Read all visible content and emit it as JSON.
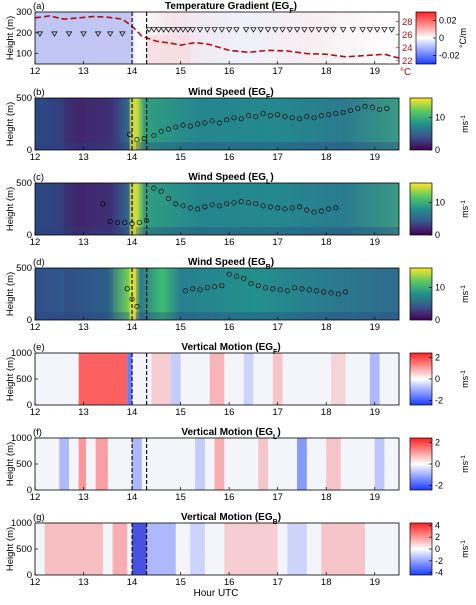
{
  "figure": {
    "xlabel": "Hour UTC",
    "x_ticks": [
      "12",
      "13",
      "14",
      "15",
      "16",
      "17",
      "18",
      "19"
    ]
  },
  "chart_data": [
    {
      "type": "heatmap",
      "panel": "(a)",
      "title": "Temperature Gradient (EG",
      "title_sub": "F",
      "ylabel": "Height (m)",
      "xlim": [
        12,
        19.5
      ],
      "ylim": [
        50,
        300
      ],
      "y_ticks": [
        "100",
        "200",
        "300"
      ],
      "colorbar": {
        "ticks": [
          "0.02",
          "0",
          "-0.02"
        ],
        "values": [
          0.02,
          0,
          -0.02
        ],
        "range": [
          -0.03,
          0.03
        ],
        "unit": "°C/m",
        "colors": [
          "#1a3cff",
          "#ffffff",
          "#ff2020"
        ]
      },
      "right_axis": {
        "ticks": [
          "28",
          "26",
          "24",
          "22"
        ],
        "values": [
          28,
          26,
          24,
          22
        ],
        "range": [
          21.5,
          29.5
        ],
        "unit": "°C",
        "color": "#b01010"
      },
      "temperature_series": {
        "x": [
          12,
          12.3,
          12.6,
          12.9,
          13.2,
          13.5,
          13.8,
          14.0,
          14.2,
          14.5,
          14.8,
          15.0,
          15.3,
          15.6,
          16.0,
          16.4,
          16.8,
          17.2,
          17.6,
          18.0,
          18.4,
          18.8,
          19.2,
          19.5
        ],
        "y": [
          28.6,
          28.9,
          28.4,
          28.6,
          28.8,
          28.7,
          28.4,
          27.3,
          25.8,
          25.0,
          24.7,
          24.4,
          24.8,
          24.5,
          23.6,
          23.3,
          23.6,
          23.5,
          23.1,
          23.0,
          22.6,
          22.8,
          23.0,
          22.4
        ]
      },
      "dashed_lines_x": [
        14.0,
        14.3
      ],
      "markers": {
        "x": [
          12.1,
          12.4,
          12.7,
          13.0,
          13.3,
          13.55,
          13.8,
          14.35,
          14.45,
          14.55,
          14.65,
          14.75,
          14.85,
          14.95,
          15.05,
          15.15,
          15.25,
          15.4,
          15.55,
          15.7,
          15.85,
          16.0,
          16.15,
          16.35,
          16.5,
          16.65,
          16.8,
          16.95,
          17.1,
          17.25,
          17.4,
          17.55,
          17.7,
          17.85,
          18.0,
          18.15,
          18.35,
          18.55,
          18.75,
          18.9,
          19.05,
          19.2,
          19.35
        ],
        "y": [
          195,
          195,
          195,
          195,
          195,
          195,
          195,
          215,
          215,
          215,
          215,
          215,
          215,
          215,
          215,
          215,
          215,
          215,
          215,
          215,
          215,
          215,
          215,
          215,
          215,
          215,
          215,
          215,
          215,
          215,
          215,
          215,
          215,
          215,
          215,
          215,
          215,
          215,
          215,
          215,
          215,
          215,
          215
        ]
      }
    },
    {
      "type": "heatmap",
      "panel": "(b)",
      "title": "Wind Speed (EG",
      "title_sub": "F",
      "ylabel": "Height (m)",
      "xlim": [
        12,
        19.5
      ],
      "ylim": [
        0,
        500
      ],
      "y_ticks": [
        "0",
        "500"
      ],
      "colorbar": {
        "ticks": [
          "10",
          "0"
        ],
        "values": [
          10,
          0
        ],
        "range": [
          0,
          16
        ],
        "unit": "ms-1",
        "unit_base": "ms",
        "unit_sup": "-1"
      },
      "dashed_lines_x": [
        14.0,
        14.3
      ],
      "markers": {
        "x": [
          13.95,
          14.1,
          14.25,
          14.45,
          14.6,
          14.75,
          14.9,
          15.05,
          15.2,
          15.35,
          15.5,
          15.65,
          15.8,
          15.95,
          16.1,
          16.25,
          16.4,
          16.55,
          16.7,
          16.85,
          17.0,
          17.15,
          17.3,
          17.45,
          17.6,
          17.75,
          17.9,
          18.05,
          18.2,
          18.35,
          18.5,
          18.65,
          18.8,
          18.95,
          19.1,
          19.25
        ],
        "y": [
          150,
          100,
          110,
          140,
          180,
          200,
          220,
          240,
          230,
          250,
          260,
          280,
          260,
          290,
          310,
          300,
          330,
          320,
          350,
          330,
          340,
          320,
          310,
          300,
          320,
          310,
          330,
          340,
          350,
          360,
          380,
          400,
          420,
          410,
          390,
          400
        ]
      }
    },
    {
      "type": "heatmap",
      "panel": "(c)",
      "title": "Wind Speed (EG",
      "title_sub": "L",
      "ylabel": "Height (m)",
      "xlim": [
        12,
        19.5
      ],
      "ylim": [
        0,
        500
      ],
      "y_ticks": [
        "0",
        "500"
      ],
      "colorbar": {
        "ticks": [
          "10",
          "0"
        ],
        "values": [
          10,
          0
        ],
        "range": [
          0,
          16
        ],
        "unit": "ms-1",
        "unit_base": "ms",
        "unit_sup": "-1"
      },
      "dashed_lines_x": [
        14.0,
        14.3
      ],
      "markers": {
        "x": [
          13.4,
          13.55,
          13.7,
          13.85,
          14.0,
          14.15,
          14.3,
          14.45,
          14.6,
          14.75,
          14.9,
          15.05,
          15.2,
          15.35,
          15.5,
          15.65,
          15.8,
          15.95,
          16.1,
          16.25,
          16.4,
          16.55,
          16.7,
          16.85,
          17.0,
          17.15,
          17.3,
          17.45,
          17.6,
          17.75,
          17.9,
          18.05,
          18.2
        ],
        "y": [
          300,
          130,
          120,
          120,
          110,
          120,
          140,
          450,
          420,
          350,
          300,
          280,
          260,
          250,
          270,
          290,
          280,
          300,
          310,
          320,
          310,
          300,
          280,
          270,
          260,
          250,
          260,
          270,
          240,
          220,
          230,
          250,
          260
        ]
      }
    },
    {
      "type": "heatmap",
      "panel": "(d)",
      "title": "Wind Speed (EG",
      "title_sub": "B",
      "ylabel": "Height (m)",
      "xlim": [
        12,
        19.5
      ],
      "ylim": [
        0,
        500
      ],
      "y_ticks": [
        "0",
        "500"
      ],
      "colorbar": {
        "ticks": [
          "10",
          "0"
        ],
        "values": [
          10,
          0
        ],
        "range": [
          0,
          16
        ],
        "unit": "ms-1",
        "unit_base": "ms",
        "unit_sup": "-1"
      },
      "dashed_lines_x": [
        14.0,
        14.3
      ],
      "markers": {
        "x": [
          13.9,
          14.0,
          14.1,
          15.1,
          15.25,
          15.4,
          15.55,
          15.7,
          15.85,
          16.0,
          16.15,
          16.3,
          16.45,
          16.6,
          16.75,
          16.9,
          17.05,
          17.2,
          17.35,
          17.5,
          17.65,
          17.8,
          17.95,
          18.1,
          18.25,
          18.4
        ],
        "y": [
          300,
          200,
          130,
          280,
          300,
          290,
          310,
          320,
          330,
          440,
          420,
          400,
          350,
          330,
          310,
          300,
          290,
          280,
          310,
          300,
          290,
          280,
          270,
          260,
          250,
          270
        ]
      }
    },
    {
      "type": "heatmap",
      "panel": "(e)",
      "title": "Vertical Motion (EG",
      "title_sub": "F",
      "ylabel": "Height (m)",
      "xlim": [
        12,
        19.5
      ],
      "ylim": [
        0,
        1000
      ],
      "y_ticks": [
        "0",
        "500",
        "1000"
      ],
      "colorbar": {
        "ticks": [
          "2",
          "0",
          "-2"
        ],
        "values": [
          2,
          0,
          -2
        ],
        "range": [
          -2.4,
          2.4
        ],
        "unit": "ms-1",
        "unit_base": "ms",
        "unit_sup": "-1"
      },
      "dashed_lines_x": [
        14.0,
        14.3
      ]
    },
    {
      "type": "heatmap",
      "panel": "(f)",
      "title": "Vertical Motion (EG",
      "title_sub": "L",
      "ylabel": "Height (m)",
      "xlim": [
        12,
        19.5
      ],
      "ylim": [
        0,
        1000
      ],
      "y_ticks": [
        "0",
        "500",
        "1000"
      ],
      "colorbar": {
        "ticks": [
          "2",
          "0",
          "-2"
        ],
        "values": [
          2,
          0,
          -2
        ],
        "range": [
          -2.4,
          2.4
        ],
        "unit": "ms-1",
        "unit_base": "ms",
        "unit_sup": "-1"
      },
      "dashed_lines_x": [
        14.0,
        14.3
      ]
    },
    {
      "type": "heatmap",
      "panel": "(g)",
      "title": "Vertical Motion (EG",
      "title_sub": "B",
      "ylabel": "Height (m)",
      "xlim": [
        12,
        19.5
      ],
      "ylim": [
        0,
        1000
      ],
      "y_ticks": [
        "0",
        "500",
        "1000"
      ],
      "colorbar": {
        "ticks": [
          "4",
          "2",
          "0",
          "-2",
          "-4"
        ],
        "values": [
          4,
          2,
          0,
          -2,
          -4
        ],
        "range": [
          -4.4,
          4.4
        ],
        "unit": "ms-1",
        "unit_base": "ms",
        "unit_sup": "-1"
      },
      "dashed_lines_x": [
        14.0,
        14.3
      ]
    }
  ]
}
